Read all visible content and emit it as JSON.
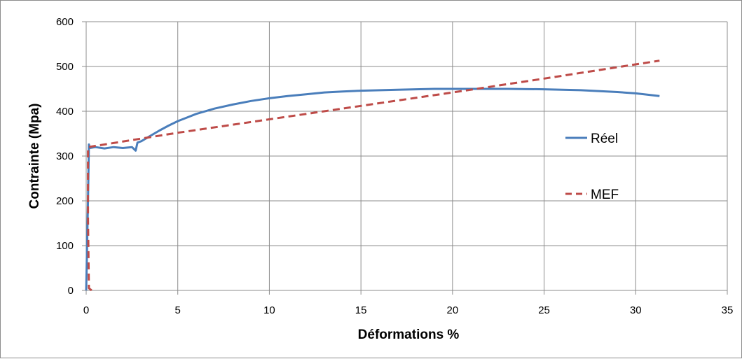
{
  "chart_data": {
    "type": "line",
    "title": "",
    "xlabel": "Déformations %",
    "ylabel": "Contrainte (Mpa)",
    "xlim": [
      0,
      35
    ],
    "ylim": [
      0,
      600
    ],
    "x_ticks": [
      "0",
      "5",
      "10",
      "15",
      "20",
      "25",
      "30",
      "35"
    ],
    "y_ticks": [
      "0",
      "100",
      "200",
      "300",
      "400",
      "500",
      "600"
    ],
    "grid": true,
    "legend_position": "right",
    "series": [
      {
        "name": "Réel",
        "style": "solid",
        "color": "#4a7ebb",
        "points": [
          [
            0,
            0
          ],
          [
            0.1,
            200
          ],
          [
            0.15,
            326
          ],
          [
            0.2,
            318
          ],
          [
            0.5,
            320
          ],
          [
            1.0,
            317
          ],
          [
            1.5,
            320
          ],
          [
            2.0,
            318
          ],
          [
            2.5,
            320
          ],
          [
            2.7,
            312
          ],
          [
            2.8,
            330
          ],
          [
            3.0,
            333
          ],
          [
            3.5,
            345
          ],
          [
            4.0,
            357
          ],
          [
            4.5,
            368
          ],
          [
            5.0,
            378
          ],
          [
            5.5,
            386
          ],
          [
            6.0,
            394
          ],
          [
            7.0,
            406
          ],
          [
            8.0,
            415
          ],
          [
            9.0,
            423
          ],
          [
            10.0,
            429
          ],
          [
            11.0,
            434
          ],
          [
            12.0,
            438
          ],
          [
            13.0,
            442
          ],
          [
            14.0,
            444
          ],
          [
            15.0,
            446
          ],
          [
            17.0,
            448
          ],
          [
            19.0,
            450
          ],
          [
            21.0,
            450
          ],
          [
            23.0,
            450
          ],
          [
            25.0,
            449
          ],
          [
            27.0,
            447
          ],
          [
            29.0,
            443
          ],
          [
            30.0,
            440
          ],
          [
            31.3,
            434
          ]
        ]
      },
      {
        "name": "MEF",
        "style": "dashed",
        "color": "#be4b48",
        "points": [
          [
            0.3,
            0
          ],
          [
            0.15,
            5
          ],
          [
            0.1,
            160
          ],
          [
            0.1,
            320
          ],
          [
            5.0,
            352
          ],
          [
            10.0,
            382
          ],
          [
            15.0,
            412
          ],
          [
            20.0,
            442
          ],
          [
            25.0,
            473
          ],
          [
            31.3,
            513
          ]
        ]
      }
    ]
  }
}
